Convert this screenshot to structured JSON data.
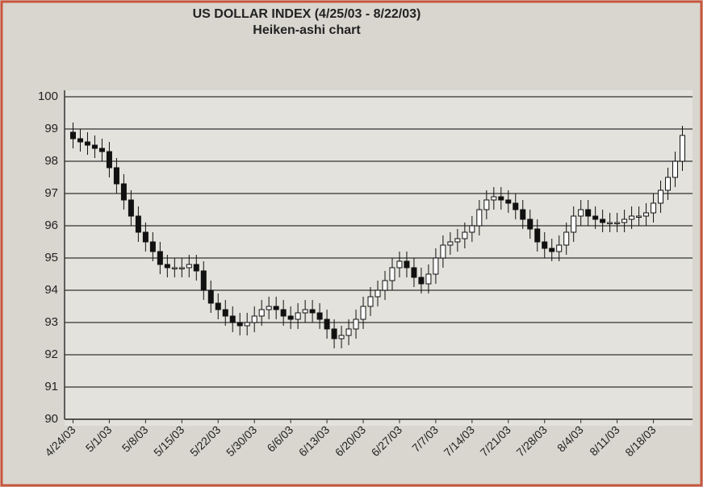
{
  "chart_data": {
    "type": "candlestick",
    "title": "US DOLLAR INDEX (4/25/03 - 8/22/03)",
    "subtitle": "Heiken-ashi chart",
    "categories": [
      "4/24/03",
      null,
      null,
      null,
      null,
      "5/1/03",
      null,
      null,
      null,
      null,
      "5/8/03",
      null,
      null,
      null,
      null,
      "5/15/03",
      null,
      null,
      null,
      null,
      "5/22/03",
      null,
      null,
      null,
      null,
      "5/30/03",
      null,
      null,
      null,
      null,
      "6/6/03",
      null,
      null,
      null,
      null,
      "6/13/03",
      null,
      null,
      null,
      null,
      "6/20/03",
      null,
      null,
      null,
      null,
      "6/27/03",
      null,
      null,
      null,
      null,
      "7/7/03",
      null,
      null,
      null,
      null,
      "7/14/03",
      null,
      null,
      null,
      null,
      "7/21/03",
      null,
      null,
      null,
      null,
      "7/28/03",
      null,
      null,
      null,
      null,
      "8/4/03",
      null,
      null,
      null,
      null,
      "8/11/03",
      null,
      null,
      null,
      null,
      "8/18/03",
      null,
      null,
      null,
      null
    ],
    "open": [
      98.9,
      98.7,
      98.6,
      98.5,
      98.4,
      98.3,
      97.8,
      97.3,
      96.8,
      96.3,
      95.8,
      95.5,
      95.2,
      94.8,
      94.7,
      94.7,
      94.7,
      94.8,
      94.6,
      94.0,
      93.6,
      93.4,
      93.2,
      93.0,
      92.9,
      93.0,
      93.2,
      93.4,
      93.5,
      93.4,
      93.2,
      93.1,
      93.3,
      93.4,
      93.3,
      93.1,
      92.8,
      92.5,
      92.6,
      92.8,
      93.1,
      93.5,
      93.8,
      94.0,
      94.3,
      94.7,
      94.9,
      94.7,
      94.4,
      94.2,
      94.5,
      95.0,
      95.4,
      95.5,
      95.6,
      95.8,
      96.0,
      96.5,
      96.8,
      96.9,
      96.8,
      96.7,
      96.5,
      96.2,
      95.9,
      95.5,
      95.3,
      95.2,
      95.4,
      95.8,
      96.3,
      96.5,
      96.3,
      96.2,
      96.1,
      96.1,
      96.1,
      96.2,
      96.3,
      96.3,
      96.4,
      96.7,
      97.1,
      97.5,
      98.0
    ],
    "high": [
      99.2,
      99.0,
      98.9,
      98.8,
      98.7,
      98.6,
      98.1,
      97.6,
      97.1,
      96.6,
      96.1,
      95.8,
      95.5,
      95.1,
      95.0,
      95.0,
      95.1,
      95.1,
      94.9,
      94.3,
      93.9,
      93.7,
      93.5,
      93.3,
      93.3,
      93.5,
      93.7,
      93.8,
      93.8,
      93.7,
      93.5,
      93.6,
      93.7,
      93.7,
      93.6,
      93.4,
      93.1,
      92.9,
      93.1,
      93.4,
      93.8,
      94.1,
      94.3,
      94.6,
      95.0,
      95.2,
      95.2,
      95.0,
      94.7,
      94.8,
      95.3,
      95.7,
      95.8,
      95.9,
      96.1,
      96.3,
      96.8,
      97.1,
      97.2,
      97.2,
      97.1,
      97.0,
      96.8,
      96.5,
      96.2,
      95.8,
      95.6,
      95.7,
      96.1,
      96.6,
      96.8,
      96.8,
      96.6,
      96.5,
      96.4,
      96.4,
      96.5,
      96.6,
      96.6,
      96.7,
      97.0,
      97.4,
      97.8,
      98.3,
      99.1
    ],
    "low": [
      98.4,
      98.3,
      98.2,
      98.1,
      98.0,
      97.5,
      97.0,
      96.5,
      96.0,
      95.5,
      95.2,
      94.9,
      94.5,
      94.4,
      94.4,
      94.4,
      94.4,
      94.3,
      93.7,
      93.3,
      93.1,
      92.9,
      92.7,
      92.6,
      92.6,
      92.7,
      92.9,
      93.1,
      93.1,
      92.9,
      92.8,
      92.8,
      93.0,
      93.0,
      92.8,
      92.5,
      92.2,
      92.2,
      92.3,
      92.5,
      92.8,
      93.2,
      93.5,
      93.7,
      94.0,
      94.4,
      94.4,
      94.1,
      93.9,
      93.9,
      94.2,
      94.7,
      95.1,
      95.2,
      95.3,
      95.5,
      95.7,
      96.2,
      96.5,
      96.5,
      96.4,
      96.2,
      95.9,
      95.6,
      95.2,
      95.0,
      94.9,
      94.9,
      95.1,
      95.5,
      96.0,
      96.0,
      95.9,
      95.8,
      95.8,
      95.8,
      95.8,
      95.9,
      96.0,
      96.0,
      96.1,
      96.4,
      96.8,
      97.2,
      97.7
    ],
    "close": [
      98.7,
      98.6,
      98.5,
      98.4,
      98.3,
      97.8,
      97.3,
      96.8,
      96.3,
      95.8,
      95.5,
      95.2,
      94.8,
      94.7,
      94.7,
      94.7,
      94.8,
      94.6,
      94.0,
      93.6,
      93.4,
      93.2,
      93.0,
      92.9,
      93.0,
      93.2,
      93.4,
      93.5,
      93.4,
      93.2,
      93.1,
      93.3,
      93.4,
      93.3,
      93.1,
      92.8,
      92.5,
      92.6,
      92.8,
      93.1,
      93.5,
      93.8,
      94.0,
      94.3,
      94.7,
      94.9,
      94.7,
      94.4,
      94.2,
      94.5,
      95.0,
      95.4,
      95.5,
      95.6,
      95.8,
      96.0,
      96.5,
      96.8,
      96.9,
      96.8,
      96.7,
      96.5,
      96.2,
      95.9,
      95.5,
      95.3,
      95.2,
      95.4,
      95.8,
      96.3,
      96.5,
      96.3,
      96.2,
      96.1,
      96.1,
      96.1,
      96.2,
      96.3,
      96.3,
      96.4,
      96.7,
      97.1,
      97.5,
      98.0,
      98.8
    ],
    "up_color": "#ffffff",
    "down_color": "#111111",
    "ylim": [
      90,
      100
    ],
    "yticks": [
      90,
      91,
      92,
      93,
      94,
      95,
      96,
      97,
      98,
      99,
      100
    ],
    "grid": true
  }
}
